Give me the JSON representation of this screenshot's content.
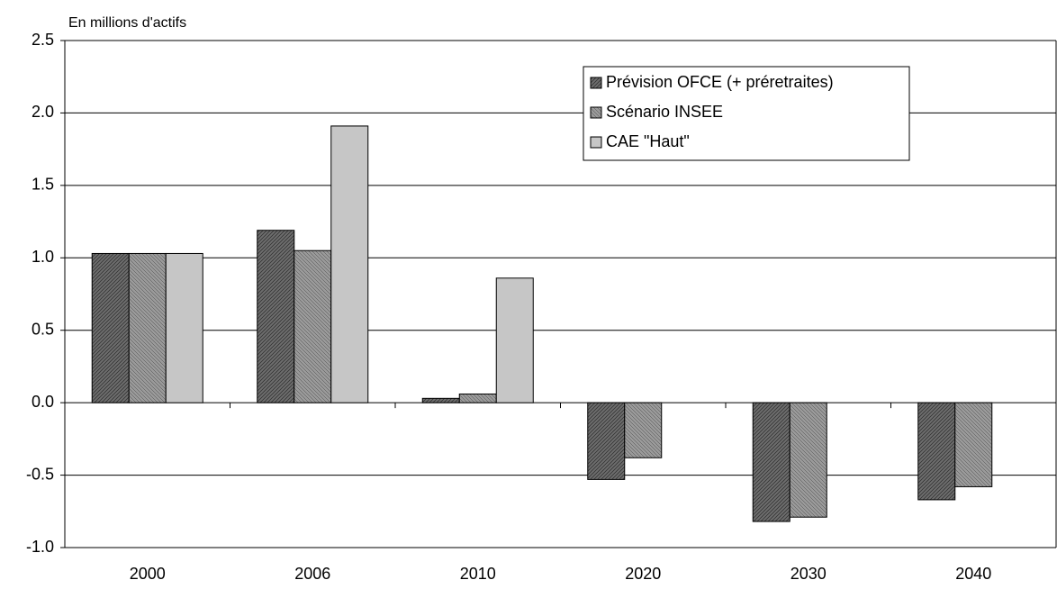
{
  "chart_data": {
    "type": "bar",
    "y_label": "En millions d'actifs",
    "categories": [
      "2000",
      "2006",
      "2010",
      "2020",
      "2030",
      "2040"
    ],
    "series": [
      {
        "name": "Prévision OFCE (+ préretraites)",
        "color": "#6e6e6e",
        "values": [
          1.03,
          1.19,
          0.03,
          -0.53,
          -0.82,
          -0.67
        ]
      },
      {
        "name": "Scénario INSEE",
        "color": "#9a9a9a",
        "values": [
          1.03,
          1.05,
          0.06,
          -0.38,
          -0.79,
          -0.58
        ]
      },
      {
        "name": "CAE \"Haut\"",
        "color": "#d8d8d8",
        "values": [
          1.03,
          1.91,
          0.86,
          null,
          null,
          null
        ]
      }
    ],
    "ylim": [
      -1.0,
      2.5
    ],
    "yticks": [
      {
        "value": -1,
        "label": "-1.0"
      },
      -0.5,
      {
        "value": 0,
        "label": "0.0"
      },
      0.5,
      {
        "value": 1,
        "label": "1.0"
      },
      1.5,
      {
        "value": 2,
        "label": "2.0"
      },
      2.5
    ],
    "grid": true
  }
}
